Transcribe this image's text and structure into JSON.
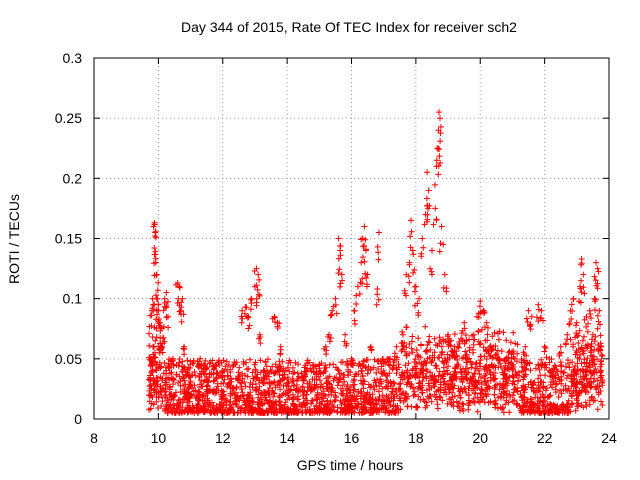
{
  "chart_data": {
    "type": "scatter",
    "title": "Day 344 of 2015, Rate Of TEC Index for receiver sch2",
    "xlabel": "GPS time / hours",
    "ylabel": "ROTI / TECUs",
    "xlim": [
      8,
      24
    ],
    "ylim": [
      0,
      0.3
    ],
    "grid": true,
    "x_ticks": [
      8,
      10,
      12,
      14,
      16,
      18,
      20,
      22,
      24
    ],
    "x_tick_labels": [
      "8",
      "10",
      "12",
      "14",
      "16",
      "18",
      "20",
      "22",
      "24"
    ],
    "y_ticks": [
      0,
      0.05,
      0.1,
      0.15,
      0.2,
      0.25,
      0.3
    ],
    "y_tick_labels": [
      "0",
      "0.05",
      "0.1",
      "0.15",
      "0.2",
      "0.25",
      "0.3"
    ],
    "marker": "+",
    "series": [
      {
        "name": "ROTI",
        "color": "#ff0000",
        "points": [
          [
            9.75,
            0.02
          ],
          [
            9.78,
            0.05
          ],
          [
            9.8,
            0.09
          ],
          [
            9.82,
            0.1
          ],
          [
            9.85,
            0.16
          ],
          [
            9.88,
            0.163
          ],
          [
            9.9,
            0.155
          ],
          [
            9.92,
            0.13
          ],
          [
            9.95,
            0.12
          ],
          [
            9.97,
            0.1
          ],
          [
            10.0,
            0.095
          ],
          [
            10.05,
            0.08
          ],
          [
            10.1,
            0.06
          ],
          [
            10.2,
            0.1
          ],
          [
            10.25,
            0.105
          ],
          [
            10.3,
            0.085
          ],
          [
            10.45,
            0.05
          ],
          [
            10.6,
            0.113
          ],
          [
            10.65,
            0.11
          ],
          [
            10.7,
            0.09
          ],
          [
            10.75,
            0.1
          ],
          [
            10.8,
            0.06
          ],
          [
            10.9,
            0.04
          ],
          [
            11.0,
            0.03
          ],
          [
            11.3,
            0.05
          ],
          [
            11.5,
            0.035
          ],
          [
            11.8,
            0.045
          ],
          [
            12.0,
            0.04
          ],
          [
            12.2,
            0.03
          ],
          [
            12.5,
            0.035
          ],
          [
            12.6,
            0.09
          ],
          [
            12.7,
            0.093
          ],
          [
            12.8,
            0.085
          ],
          [
            12.9,
            0.1
          ],
          [
            13.0,
            0.11
          ],
          [
            13.05,
            0.125
          ],
          [
            13.1,
            0.12
          ],
          [
            13.15,
            0.07
          ],
          [
            13.3,
            0.04
          ],
          [
            13.5,
            0.03
          ],
          [
            13.6,
            0.085
          ],
          [
            13.7,
            0.08
          ],
          [
            13.8,
            0.06
          ],
          [
            14.0,
            0.03
          ],
          [
            14.3,
            0.025
          ],
          [
            14.6,
            0.04
          ],
          [
            14.8,
            0.045
          ],
          [
            15.0,
            0.04
          ],
          [
            15.2,
            0.06
          ],
          [
            15.3,
            0.07
          ],
          [
            15.4,
            0.09
          ],
          [
            15.5,
            0.1
          ],
          [
            15.6,
            0.15
          ],
          [
            15.65,
            0.14
          ],
          [
            15.7,
            0.12
          ],
          [
            15.8,
            0.07
          ],
          [
            16.0,
            0.05
          ],
          [
            16.1,
            0.09
          ],
          [
            16.2,
            0.11
          ],
          [
            16.3,
            0.13
          ],
          [
            16.35,
            0.15
          ],
          [
            16.4,
            0.16
          ],
          [
            16.45,
            0.14
          ],
          [
            16.5,
            0.12
          ],
          [
            16.6,
            0.06
          ],
          [
            16.8,
            0.108
          ],
          [
            16.85,
            0.155
          ],
          [
            17.0,
            0.04
          ],
          [
            17.2,
            0.05
          ],
          [
            17.4,
            0.06
          ],
          [
            17.6,
            0.07
          ],
          [
            17.7,
            0.12
          ],
          [
            17.8,
            0.13
          ],
          [
            17.85,
            0.165
          ],
          [
            17.9,
            0.14
          ],
          [
            18.0,
            0.11
          ],
          [
            18.1,
            0.1
          ],
          [
            18.2,
            0.15
          ],
          [
            18.3,
            0.17
          ],
          [
            18.35,
            0.205
          ],
          [
            18.4,
            0.19
          ],
          [
            18.5,
            0.14
          ],
          [
            18.6,
            0.175
          ],
          [
            18.65,
            0.215
          ],
          [
            18.7,
            0.24
          ],
          [
            18.72,
            0.255
          ],
          [
            18.75,
            0.25
          ],
          [
            18.8,
            0.16
          ],
          [
            18.9,
            0.12
          ],
          [
            19.0,
            0.07
          ],
          [
            19.2,
            0.06
          ],
          [
            19.5,
            0.08
          ],
          [
            19.8,
            0.07
          ],
          [
            19.9,
            0.085
          ],
          [
            20.0,
            0.098
          ],
          [
            20.1,
            0.09
          ],
          [
            20.2,
            0.08
          ],
          [
            20.4,
            0.06
          ],
          [
            20.6,
            0.05
          ],
          [
            20.8,
            0.05
          ],
          [
            21.0,
            0.045
          ],
          [
            21.4,
            0.06
          ],
          [
            21.5,
            0.09
          ],
          [
            21.6,
            0.085
          ],
          [
            21.8,
            0.095
          ],
          [
            21.9,
            0.09
          ],
          [
            22.0,
            0.06
          ],
          [
            22.2,
            0.04
          ],
          [
            22.5,
            0.06
          ],
          [
            22.7,
            0.07
          ],
          [
            22.8,
            0.09
          ],
          [
            22.9,
            0.1
          ],
          [
            23.0,
            0.08
          ],
          [
            23.1,
            0.11
          ],
          [
            23.15,
            0.133
          ],
          [
            23.2,
            0.12
          ],
          [
            23.3,
            0.085
          ],
          [
            23.4,
            0.09
          ],
          [
            23.5,
            0.07
          ],
          [
            23.55,
            0.1
          ],
          [
            23.6,
            0.13
          ],
          [
            23.65,
            0.125
          ],
          [
            23.7,
            0.09
          ],
          [
            23.75,
            0.06
          ]
        ]
      }
    ],
    "dense_band": {
      "x_range": [
        9.7,
        23.8
      ],
      "typical_range": [
        0.005,
        0.05
      ],
      "note": "dense cloud of low ROTI values throughout the tracked period"
    }
  }
}
